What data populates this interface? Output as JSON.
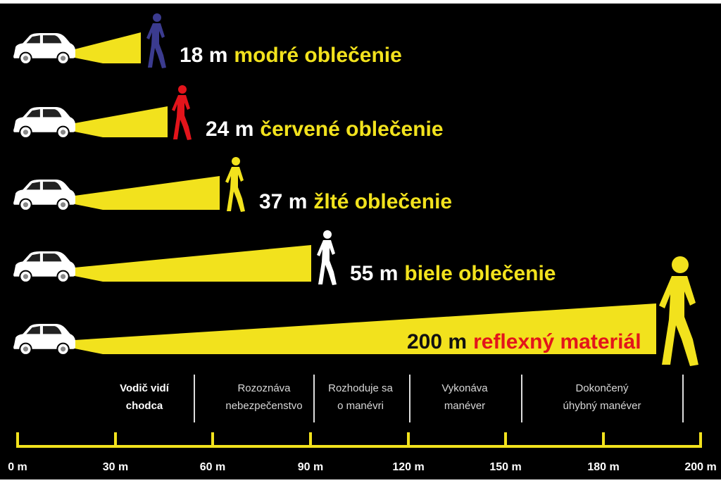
{
  "rows": [
    {
      "distance": "18 m",
      "label": "modré oblečenie"
    },
    {
      "distance": "24 m",
      "label": "červené oblečenie"
    },
    {
      "distance": "37 m",
      "label": "žlté oblečenie"
    },
    {
      "distance": "55 m",
      "label": "biele oblečenie"
    },
    {
      "distance": "200 m",
      "label": "reflexný materiál"
    }
  ],
  "phases": [
    {
      "lines": [
        "Vodič vidí",
        "chodca"
      ]
    },
    {
      "lines": [
        "Rozoznáva",
        "nebezpečenstvo"
      ]
    },
    {
      "lines": [
        "Rozhoduje sa",
        "o manévri"
      ]
    },
    {
      "lines": [
        "Vykonáva",
        "manéver"
      ]
    },
    {
      "lines": [
        "Dokončený",
        "úhybný manéver"
      ]
    }
  ],
  "axis": {
    "ticks": [
      "0 m",
      "30 m",
      "60 m",
      "90 m",
      "120 m",
      "150 m",
      "180 m",
      "200 m"
    ]
  }
}
